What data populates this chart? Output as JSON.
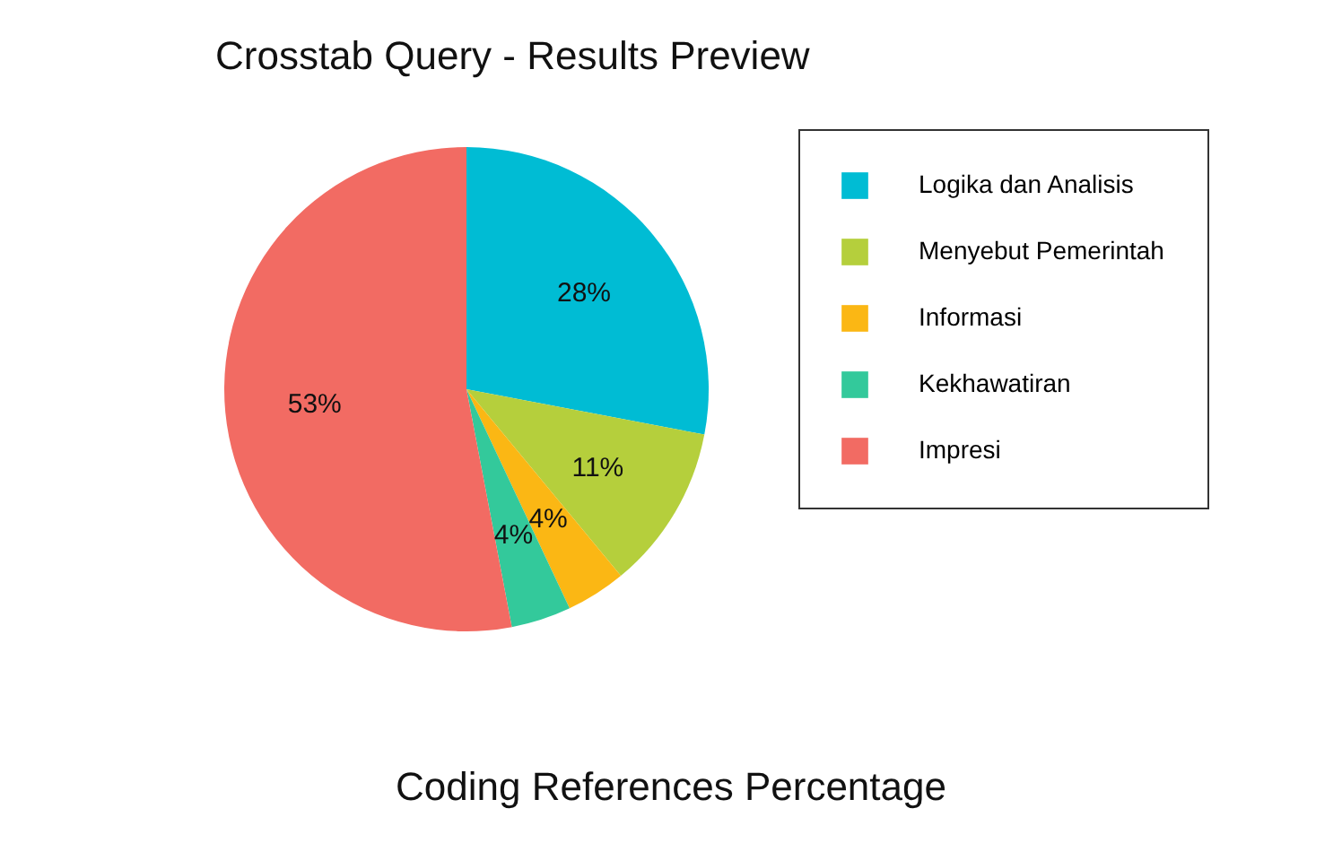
{
  "chart_data": {
    "type": "pie",
    "title": "Crosstab Query - Results Preview",
    "categories": [
      "Logika dan Analisis",
      "Menyebut Pemerintah",
      "Informasi",
      "Kekhawatiran",
      "Impresi"
    ],
    "values": [
      28,
      11,
      4,
      4,
      53
    ],
    "colors": [
      "#00bcd4",
      "#b5cf3c",
      "#fbb714",
      "#33c99b",
      "#f26b63"
    ],
    "value_labels": [
      "28%",
      "11%",
      "4%",
      "4%",
      "53%"
    ],
    "legend": "right",
    "annotations": [
      "Coding References Percentage"
    ]
  }
}
